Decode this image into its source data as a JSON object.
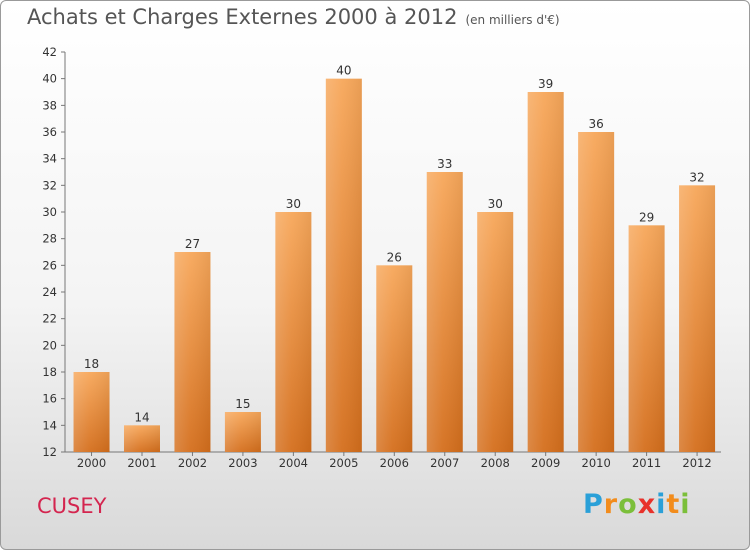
{
  "header": {
    "title": "Achats et Charges Externes 2000 à 2012",
    "unit": "(en milliers d'€)"
  },
  "footer": {
    "commune": "CUSEY",
    "logo": {
      "letters": [
        "P",
        "r",
        "o",
        "x",
        "i",
        "t",
        "i"
      ],
      "colors": [
        "#2aa0d8",
        "#f28c1c",
        "#7bbf3a",
        "#e8322b",
        "#2aa0d8",
        "#f28c1c",
        "#7bbf3a"
      ]
    }
  },
  "chart_data": {
    "type": "bar",
    "title": "Achats et Charges Externes 2000 à 2012",
    "subtitle": "(en milliers d'€)",
    "categories": [
      "2000",
      "2001",
      "2002",
      "2003",
      "2004",
      "2005",
      "2006",
      "2007",
      "2008",
      "2009",
      "2010",
      "2011",
      "2012"
    ],
    "values": [
      18,
      14,
      27,
      15,
      30,
      40,
      26,
      33,
      30,
      39,
      36,
      29,
      32
    ],
    "ylim": [
      12,
      42
    ],
    "yticks": [
      12,
      14,
      16,
      18,
      20,
      22,
      24,
      26,
      28,
      30,
      32,
      34,
      36,
      38,
      40,
      42
    ],
    "grid": false,
    "bar_color_top": "#f7a75a",
    "bar_color_bottom": "#d46e1c"
  }
}
